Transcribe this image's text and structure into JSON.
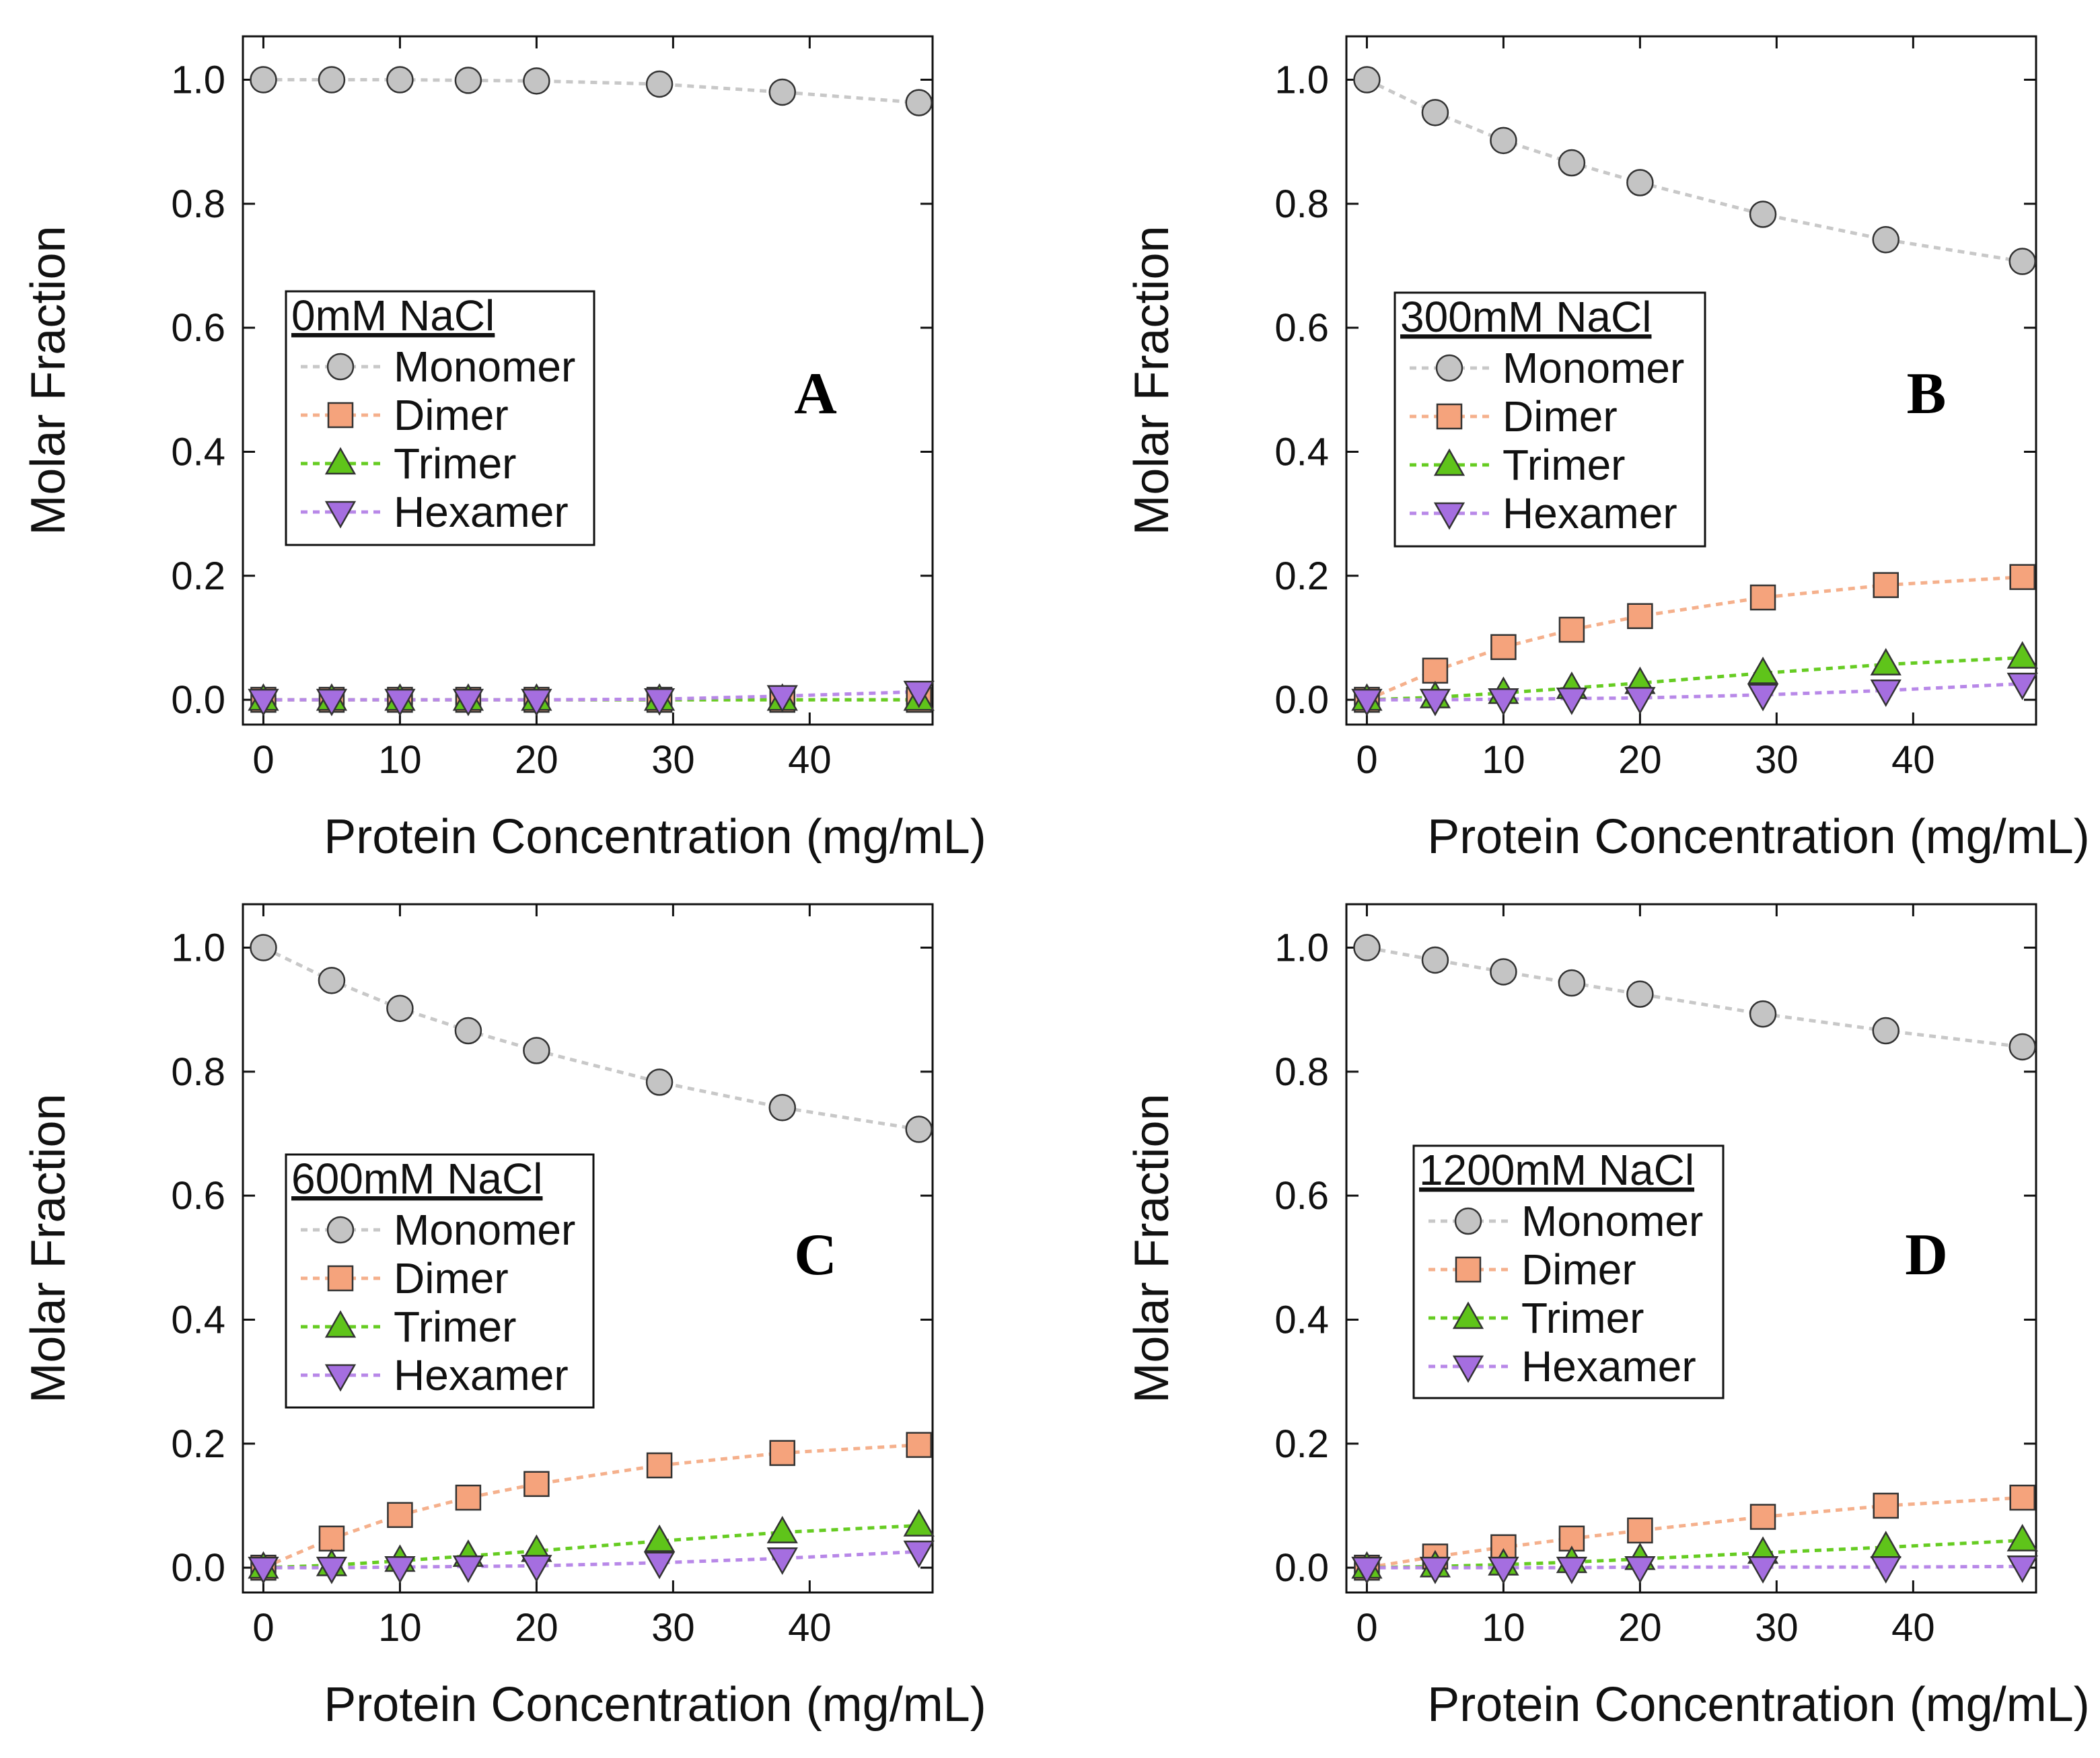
{
  "chart_data": [
    {
      "type": "line",
      "panel": "A",
      "legend_title": "0mM NaCl",
      "x": [
        0,
        5,
        10,
        15,
        20,
        29,
        38,
        48
      ],
      "series": [
        {
          "name": "Monomer",
          "marker": "circle",
          "values": [
            1.0,
            1.0,
            1.0,
            0.999,
            0.998,
            0.993,
            0.98,
            0.963
          ]
        },
        {
          "name": "Dimer",
          "marker": "square",
          "values": [
            0,
            0,
            0,
            0,
            0,
            0,
            0,
            0
          ]
        },
        {
          "name": "Trimer",
          "marker": "triangle-up",
          "values": [
            0,
            0,
            0,
            0,
            0,
            0,
            0,
            0
          ]
        },
        {
          "name": "Hexamer",
          "marker": "triangle-down",
          "values": [
            0,
            0,
            0,
            0,
            0,
            0.001,
            0.006,
            0.013
          ]
        }
      ],
      "xlabel": "Protein Concentration (mg/mL)",
      "ylabel": "Molar Fraction",
      "xlim": [
        -1.5,
        49
      ],
      "ylim": [
        -0.04,
        1.07
      ],
      "xticks": [
        0,
        10,
        20,
        30,
        40
      ],
      "yticks": [
        "0.0",
        "0.2",
        "0.4",
        "0.6",
        "0.8",
        "1.0"
      ]
    },
    {
      "type": "line",
      "panel": "B",
      "legend_title": "300mM NaCl",
      "x": [
        0,
        5,
        10,
        15,
        20,
        29,
        38,
        48
      ],
      "series": [
        {
          "name": "Monomer",
          "marker": "circle",
          "values": [
            1.0,
            0.947,
            0.902,
            0.866,
            0.834,
            0.783,
            0.742,
            0.707
          ]
        },
        {
          "name": "Dimer",
          "marker": "square",
          "values": [
            0,
            0.047,
            0.085,
            0.113,
            0.135,
            0.165,
            0.185,
            0.198
          ]
        },
        {
          "name": "Trimer",
          "marker": "triangle-up",
          "values": [
            0,
            0.004,
            0.011,
            0.019,
            0.027,
            0.043,
            0.057,
            0.068
          ]
        },
        {
          "name": "Hexamer",
          "marker": "triangle-down",
          "values": [
            0,
            0.0,
            0.001,
            0.002,
            0.003,
            0.008,
            0.015,
            0.026
          ]
        }
      ],
      "xlabel": "Protein Concentration (mg/mL)",
      "ylabel": "Molar Fraction",
      "xlim": [
        -1.5,
        49
      ],
      "ylim": [
        -0.04,
        1.07
      ],
      "xticks": [
        0,
        10,
        20,
        30,
        40
      ],
      "yticks": [
        "0.0",
        "0.2",
        "0.4",
        "0.6",
        "0.8",
        "1.0"
      ]
    },
    {
      "type": "line",
      "panel": "C",
      "legend_title": "600mM NaCl",
      "x": [
        0,
        5,
        10,
        15,
        20,
        29,
        38,
        48
      ],
      "series": [
        {
          "name": "Monomer",
          "marker": "circle",
          "values": [
            1.0,
            0.947,
            0.902,
            0.866,
            0.834,
            0.783,
            0.742,
            0.707
          ]
        },
        {
          "name": "Dimer",
          "marker": "square",
          "values": [
            0,
            0.047,
            0.085,
            0.113,
            0.135,
            0.165,
            0.185,
            0.198
          ]
        },
        {
          "name": "Trimer",
          "marker": "triangle-up",
          "values": [
            0,
            0.004,
            0.011,
            0.019,
            0.027,
            0.043,
            0.057,
            0.068
          ]
        },
        {
          "name": "Hexamer",
          "marker": "triangle-down",
          "values": [
            0,
            0.0,
            0.001,
            0.002,
            0.003,
            0.008,
            0.015,
            0.026
          ]
        }
      ],
      "xlabel": "Protein Concentration (mg/mL)",
      "ylabel": "Molar Fraction",
      "xlim": [
        -1.5,
        49
      ],
      "ylim": [
        -0.04,
        1.07
      ],
      "xticks": [
        0,
        10,
        20,
        30,
        40
      ],
      "yticks": [
        "0.0",
        "0.2",
        "0.4",
        "0.6",
        "0.8",
        "1.0"
      ]
    },
    {
      "type": "line",
      "panel": "D",
      "legend_title": "1200mM NaCl",
      "x": [
        0,
        5,
        10,
        15,
        20,
        29,
        38,
        48
      ],
      "series": [
        {
          "name": "Monomer",
          "marker": "circle",
          "values": [
            1.0,
            0.98,
            0.961,
            0.943,
            0.925,
            0.893,
            0.866,
            0.84
          ]
        },
        {
          "name": "Dimer",
          "marker": "square",
          "values": [
            0,
            0.018,
            0.033,
            0.047,
            0.06,
            0.082,
            0.1,
            0.113
          ]
        },
        {
          "name": "Trimer",
          "marker": "triangle-up",
          "values": [
            0,
            0.002,
            0.005,
            0.009,
            0.014,
            0.024,
            0.033,
            0.044
          ]
        },
        {
          "name": "Hexamer",
          "marker": "triangle-down",
          "values": [
            0,
            0,
            0,
            0,
            0.001,
            0.001,
            0.001,
            0.002
          ]
        }
      ],
      "xlabel": "Protein Concentration (mg/mL)",
      "ylabel": "Molar Fraction",
      "xlim": [
        -1.5,
        49
      ],
      "ylim": [
        -0.04,
        1.07
      ],
      "xticks": [
        0,
        10,
        20,
        30,
        40
      ],
      "yticks": [
        "0.0",
        "0.2",
        "0.4",
        "0.6",
        "0.8",
        "1.0"
      ]
    }
  ],
  "colors": {
    "Monomer": {
      "line": "#c8c8c8",
      "fill": "#c4c4c4"
    },
    "Dimer": {
      "line": "#f5b08c",
      "fill": "#f5a37c"
    },
    "Trimer": {
      "line": "#66cc22",
      "fill": "#5fc41a"
    },
    "Hexamer": {
      "line": "#b888e8",
      "fill": "#a56ee0"
    },
    "axis": "#111111"
  }
}
